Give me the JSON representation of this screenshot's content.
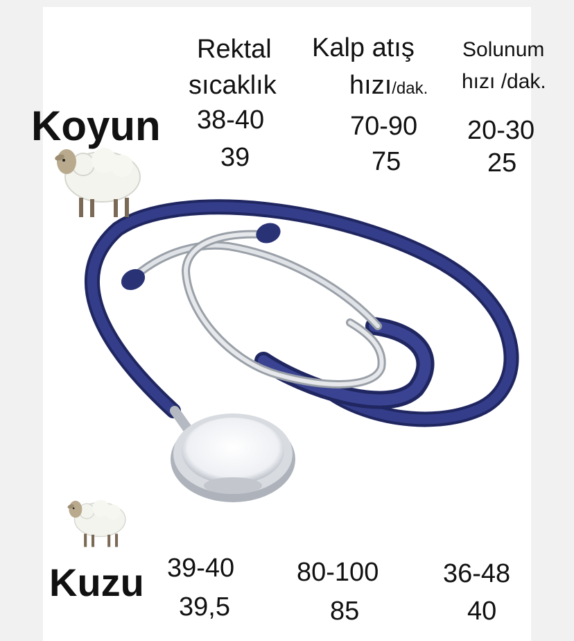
{
  "headers": {
    "rectal_line1": "Rektal",
    "rectal_line2": "sıcaklık",
    "heart_line1": "Kalp atış",
    "heart_line2": "hızı",
    "heart_unit": "/dak.",
    "resp_line1": "Solunum",
    "resp_line2": "hızı /dak."
  },
  "koyun": {
    "label": "Koyun",
    "rectal_range": "38-40",
    "rectal_avg": "39",
    "heart_range": "70-90",
    "heart_avg": "75",
    "resp_range": "20-30",
    "resp_avg": "25"
  },
  "kuzu": {
    "label": "Kuzu",
    "rectal_range": "39-40",
    "rectal_avg": "39,5",
    "heart_range": "80-100",
    "heart_avg": "85",
    "resp_range": "36-48",
    "resp_avg": "40"
  },
  "images": {
    "sheep_icon": "sheep-icon",
    "stethoscope": "stethoscope-illustration"
  },
  "colors": {
    "tube": "#2c3478",
    "metal": "#c9ccd2"
  }
}
